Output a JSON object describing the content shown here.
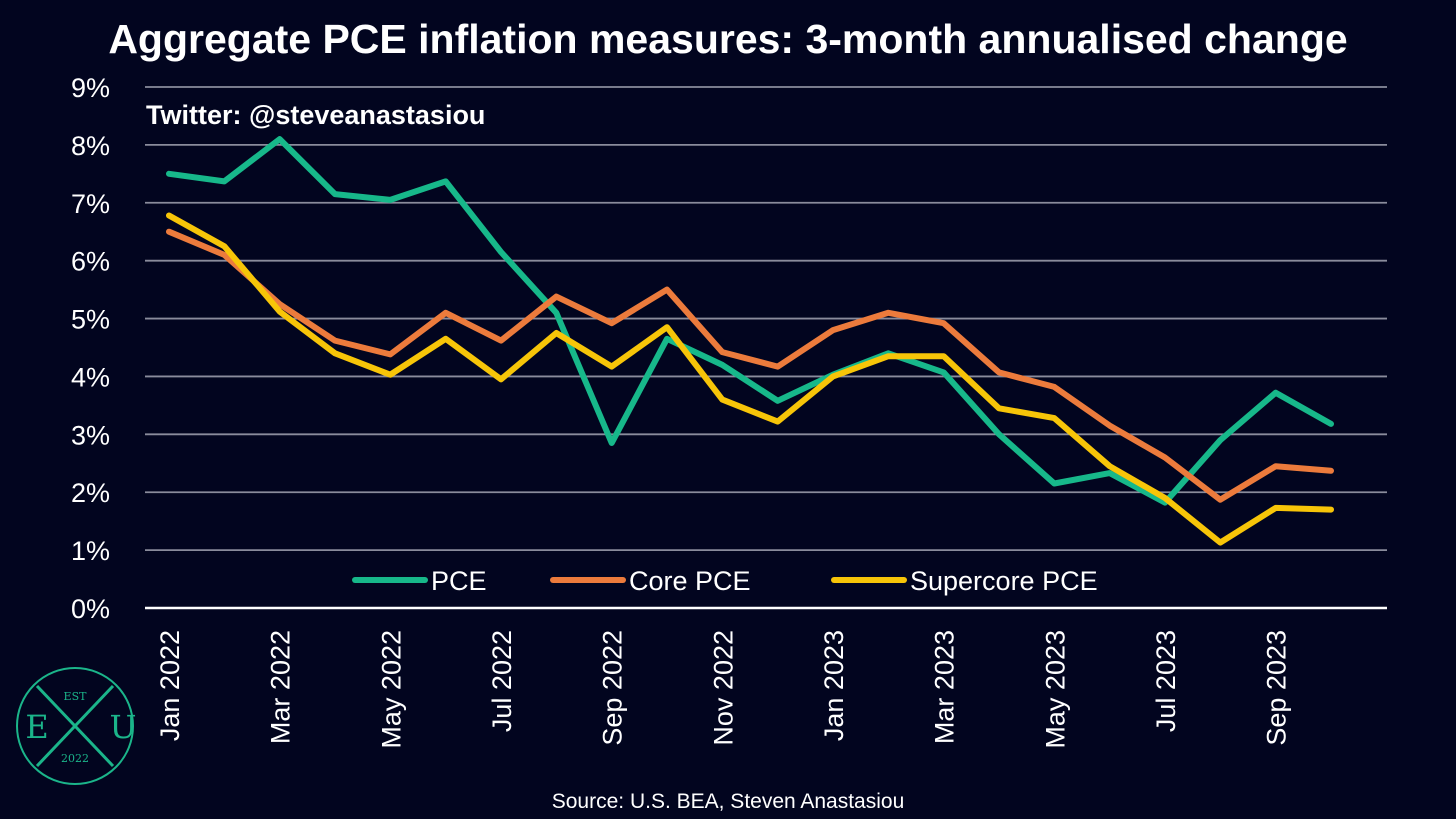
{
  "chart_data": {
    "type": "line",
    "title": "Aggregate PCE inflation measures: 3-month annualised change",
    "credit": "Twitter: @steveanastasiou",
    "source": "Source: U.S. BEA, Steven Anastasiou",
    "y_tick_labels": [
      "0%",
      "1%",
      "2%",
      "3%",
      "4%",
      "5%",
      "6%",
      "7%",
      "8%",
      "9%"
    ],
    "ylim": [
      0,
      9
    ],
    "grid": true,
    "legend_position": "bottom-center",
    "x": [
      "Jan 2022",
      "Feb 2022",
      "Mar 2022",
      "Apr 2022",
      "May 2022",
      "Jun 2022",
      "Jul 2022",
      "Aug 2022",
      "Sep 2022",
      "Oct 2022",
      "Nov 2022",
      "Dec 2022",
      "Jan 2023",
      "Feb 2023",
      "Mar 2023",
      "Apr 2023",
      "May 2023",
      "Jun 2023",
      "Jul 2023",
      "Aug 2023",
      "Sep 2023",
      "Oct 2023"
    ],
    "x_tick_labels": [
      "Jan 2022",
      "Mar 2022",
      "May 2022",
      "Jul 2022",
      "Sep 2022",
      "Nov 2022",
      "Jan 2023",
      "Mar 2023",
      "May 2023",
      "Jul 2023",
      "Sep 2023"
    ],
    "series": [
      {
        "name": "PCE",
        "color": "#17b88a",
        "values": [
          7.5,
          7.37,
          8.1,
          7.15,
          7.05,
          7.37,
          6.15,
          5.1,
          2.85,
          4.65,
          4.2,
          3.58,
          4.03,
          4.4,
          4.07,
          3.0,
          2.15,
          2.33,
          1.82,
          2.9,
          3.72,
          3.18
        ]
      },
      {
        "name": "Core PCE",
        "color": "#ec7b3c",
        "values": [
          6.5,
          6.1,
          5.25,
          4.62,
          4.38,
          5.1,
          4.62,
          5.38,
          4.92,
          5.5,
          4.42,
          4.17,
          4.8,
          5.1,
          4.92,
          4.07,
          3.82,
          3.15,
          2.6,
          1.87,
          2.45,
          2.37
        ]
      },
      {
        "name": "Supercore PCE",
        "color": "#f7c508",
        "values": [
          6.78,
          6.25,
          5.12,
          4.4,
          4.03,
          4.65,
          3.95,
          4.75,
          4.17,
          4.85,
          3.6,
          3.22,
          4.0,
          4.35,
          4.35,
          3.45,
          3.28,
          2.45,
          1.9,
          1.13,
          1.73,
          1.7
        ]
      }
    ]
  },
  "logo": {
    "est": "EST",
    "left_letter": "E",
    "right_letter": "U",
    "year": "2022",
    "color": "#1bb58a"
  }
}
